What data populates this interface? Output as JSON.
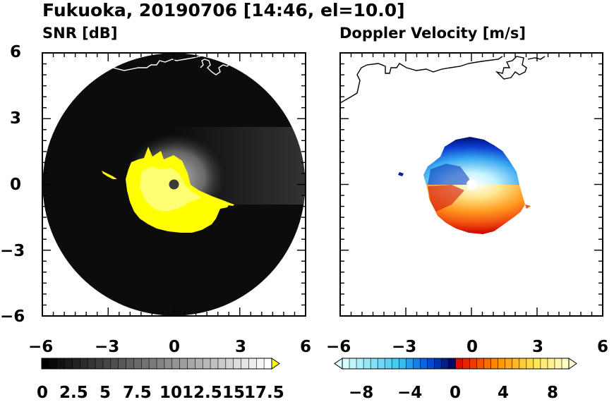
{
  "title": "Fukuoka, 20190706 [14:46, el=10.0]",
  "chart_data": [
    {
      "type": "heatmap",
      "title": "SNR [dB]",
      "projection": "radar PPI",
      "xlim": [
        -6,
        6
      ],
      "ylim": [
        -6,
        6
      ],
      "xticks": [
        -6,
        -3,
        0,
        3,
        6
      ],
      "yticks": [
        -6,
        -3,
        0,
        3,
        6
      ],
      "xtick_labels": [
        "−6",
        "−3",
        "0",
        "3",
        "6"
      ],
      "ytick_labels": [
        "6",
        "3",
        "0",
        "−3",
        "−6"
      ],
      "max_range": 6,
      "colormap": "gray-to-yellow",
      "colors": {
        "low": "#000000",
        "high": "#ffffff",
        "over": "#ffff00"
      },
      "colorbar": {
        "min": 0,
        "max": 18.75,
        "step": 0.625,
        "extend": "max",
        "tick_labels": [
          "0",
          "2.5",
          "5",
          "7.5",
          "10",
          "12.5",
          "15",
          "17.5"
        ]
      }
    },
    {
      "type": "heatmap",
      "title": "Doppler Velocity [m/s]",
      "projection": "radar PPI",
      "xlim": [
        -6,
        6
      ],
      "ylim": [
        -6,
        6
      ],
      "xticks": [
        -6,
        -3,
        0,
        3,
        6
      ],
      "xtick_labels": [
        "−6",
        "−3",
        "0",
        "3",
        "6"
      ],
      "colormap": "cyan-blue / red-yellow diverging",
      "colors": {
        "neg_light": "#e0ffff",
        "neg_mid": "#0050dc",
        "neg_dark": "#000050",
        "pos_dark": "#dc0000",
        "pos_mid": "#ff8c00",
        "pos_light": "#ffffd2"
      },
      "colorbar": {
        "min": -10,
        "max": 10,
        "step": 0.625,
        "extend": "both",
        "tick_labels": [
          "−8",
          "−4",
          "0",
          "4",
          "8"
        ]
      }
    }
  ]
}
